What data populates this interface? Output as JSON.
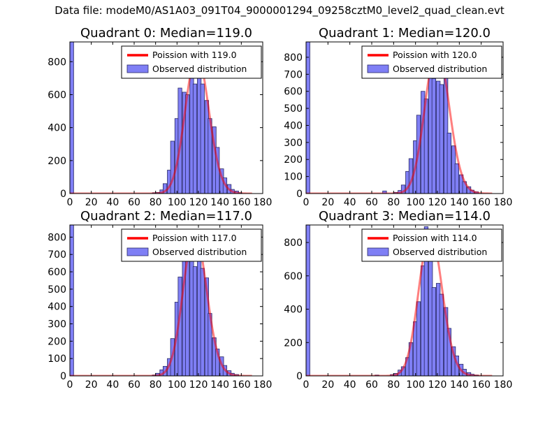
{
  "figure": {
    "title": "Data file: modeM0/AS1A03_091T04_9000001294_09258cztM0_level2_quad_clean.evt"
  },
  "colors": {
    "poisson": "#ff0000",
    "bar_fill": "#7f7ff5",
    "bar_edge": "#2a2a66",
    "axes": "#000000",
    "background": "#ffffff"
  },
  "chart_data": [
    {
      "type": "bar",
      "title": "Quadrant 0: Median=119.0",
      "xlim": [
        0,
        180
      ],
      "ylim": [
        0,
        920
      ],
      "xticks": [
        0,
        20,
        40,
        60,
        80,
        100,
        120,
        140,
        160,
        180
      ],
      "yticks": [
        0,
        200,
        400,
        600,
        800
      ],
      "bin_width": 3.5,
      "bins": [
        [
          0,
          920
        ],
        [
          77,
          5
        ],
        [
          80,
          7
        ],
        [
          84,
          22
        ],
        [
          87,
          60
        ],
        [
          91,
          142
        ],
        [
          94,
          318
        ],
        [
          98,
          455
        ],
        [
          101,
          640
        ],
        [
          105,
          615
        ],
        [
          108,
          600
        ],
        [
          112,
          855
        ],
        [
          115,
          665
        ],
        [
          119,
          820
        ],
        [
          122,
          665
        ],
        [
          126,
          565
        ],
        [
          129,
          455
        ],
        [
          133,
          405
        ],
        [
          136,
          280
        ],
        [
          140,
          150
        ],
        [
          143,
          95
        ],
        [
          147,
          55
        ],
        [
          150,
          25
        ],
        [
          154,
          15
        ],
        [
          157,
          5
        ]
      ],
      "poisson": {
        "label": "Poission with 119.0",
        "mean": 119.0,
        "xrange": [
          0,
          170
        ],
        "scale": 845
      },
      "hist_label": "Observed distribution"
    },
    {
      "type": "bar",
      "title": "Quadrant 1: Median=120.0",
      "xlim": [
        0,
        180
      ],
      "ylim": [
        0,
        890
      ],
      "xticks": [
        0,
        20,
        40,
        60,
        80,
        100,
        120,
        140,
        160,
        180
      ],
      "yticks": [
        0,
        100,
        200,
        300,
        400,
        500,
        600,
        700,
        800
      ],
      "bin_width": 3.5,
      "bins": [
        [
          0,
          890
        ],
        [
          70,
          15
        ],
        [
          80,
          7
        ],
        [
          84,
          18
        ],
        [
          87,
          50
        ],
        [
          91,
          130
        ],
        [
          94,
          205
        ],
        [
          98,
          310
        ],
        [
          101,
          460
        ],
        [
          105,
          600
        ],
        [
          108,
          555
        ],
        [
          112,
          715
        ],
        [
          115,
          675
        ],
        [
          119,
          660
        ],
        [
          122,
          640
        ],
        [
          126,
          695
        ],
        [
          129,
          355
        ],
        [
          133,
          280
        ],
        [
          136,
          175
        ],
        [
          140,
          110
        ],
        [
          143,
          70
        ],
        [
          147,
          40
        ],
        [
          150,
          20
        ],
        [
          154,
          10
        ]
      ],
      "poisson": {
        "label": "Poission with 120.0",
        "mean": 120.0,
        "xrange": [
          0,
          170
        ],
        "scale": 855
      },
      "hist_label": "Observed distribution"
    },
    {
      "type": "bar",
      "title": "Quadrant 2: Median=117.0",
      "xlim": [
        0,
        180
      ],
      "ylim": [
        0,
        870
      ],
      "xticks": [
        0,
        20,
        40,
        60,
        80,
        100,
        120,
        140,
        160,
        180
      ],
      "yticks": [
        0,
        100,
        200,
        300,
        400,
        500,
        600,
        700,
        800
      ],
      "bin_width": 3.5,
      "bins": [
        [
          0,
          870
        ],
        [
          77,
          5
        ],
        [
          80,
          15
        ],
        [
          84,
          35
        ],
        [
          87,
          55
        ],
        [
          91,
          100
        ],
        [
          94,
          215
        ],
        [
          98,
          425
        ],
        [
          101,
          570
        ],
        [
          105,
          675
        ],
        [
          108,
          740
        ],
        [
          112,
          780
        ],
        [
          115,
          630
        ],
        [
          119,
          710
        ],
        [
          122,
          620
        ],
        [
          126,
          565
        ],
        [
          129,
          360
        ],
        [
          133,
          220
        ],
        [
          136,
          155
        ],
        [
          140,
          110
        ],
        [
          143,
          60
        ],
        [
          147,
          30
        ],
        [
          150,
          15
        ],
        [
          154,
          8
        ]
      ],
      "poisson": {
        "label": "Poission with 117.0",
        "mean": 117.0,
        "xrange": [
          0,
          170
        ],
        "scale": 830
      },
      "hist_label": "Observed distribution"
    },
    {
      "type": "bar",
      "title": "Quadrant 3: Median=114.0",
      "xlim": [
        0,
        180
      ],
      "ylim": [
        0,
        905
      ],
      "xticks": [
        0,
        20,
        40,
        60,
        80,
        100,
        120,
        140,
        160,
        180
      ],
      "yticks": [
        0,
        200,
        400,
        600,
        800
      ],
      "bin_width": 3.5,
      "bins": [
        [
          0,
          905
        ],
        [
          63,
          5
        ],
        [
          77,
          8
        ],
        [
          80,
          15
        ],
        [
          84,
          35
        ],
        [
          87,
          55
        ],
        [
          91,
          110
        ],
        [
          94,
          200
        ],
        [
          98,
          325
        ],
        [
          101,
          445
        ],
        [
          105,
          660
        ],
        [
          108,
          895
        ],
        [
          112,
          705
        ],
        [
          115,
          530
        ],
        [
          119,
          555
        ],
        [
          122,
          490
        ],
        [
          126,
          410
        ],
        [
          129,
          285
        ],
        [
          133,
          175
        ],
        [
          136,
          120
        ],
        [
          140,
          70
        ],
        [
          143,
          40
        ],
        [
          147,
          20
        ],
        [
          150,
          10
        ],
        [
          154,
          5
        ]
      ],
      "poisson": {
        "label": "Poission with 114.0",
        "mean": 114.0,
        "xrange": [
          0,
          170
        ],
        "scale": 855
      },
      "hist_label": "Observed distribution"
    }
  ]
}
